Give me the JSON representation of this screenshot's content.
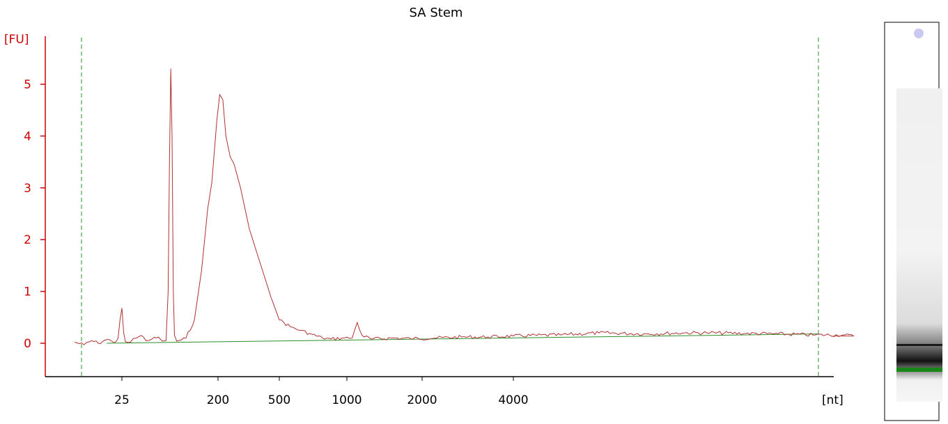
{
  "chart_data": {
    "type": "line",
    "title": "SA Stem",
    "ylabel": "[FU]",
    "xlabel": "[nt]",
    "x_scale": "log",
    "x_ticks": [
      "25",
      "200",
      "500",
      "1000",
      "2000",
      "4000"
    ],
    "y_ticks": [
      "0",
      "1",
      "2",
      "3",
      "4",
      "5"
    ],
    "ylim": [
      -0.65,
      5.9
    ],
    "grid": false,
    "colors": {
      "trace": "#b03030",
      "baseline": "#2a8f2a",
      "y_axis": "#cc0000",
      "marker_line": "#2a8f2a",
      "lane_band": "#1a1a1a",
      "lane_marker": "#178517"
    },
    "series": [
      {
        "points": [
          [
            9,
            0.02
          ],
          [
            11,
            -0.03
          ],
          [
            13,
            0.05
          ],
          [
            15,
            0.0
          ],
          [
            18,
            0.07
          ],
          [
            20,
            0.04
          ],
          [
            22,
            0.03
          ],
          [
            23,
            0.1
          ],
          [
            24,
            0.45
          ],
          [
            25,
            0.68
          ],
          [
            26,
            0.2
          ],
          [
            27,
            0.03
          ],
          [
            30,
            0.02
          ],
          [
            34,
            0.1
          ],
          [
            38,
            0.15
          ],
          [
            42,
            0.05
          ],
          [
            48,
            0.08
          ],
          [
            55,
            0.12
          ],
          [
            60,
            0.04
          ],
          [
            65,
            0.05
          ],
          [
            68,
            1.0
          ],
          [
            70,
            3.5
          ],
          [
            72,
            5.3
          ],
          [
            74,
            4.0
          ],
          [
            76,
            1.0
          ],
          [
            78,
            0.15
          ],
          [
            82,
            0.04
          ],
          [
            90,
            0.06
          ],
          [
            100,
            0.1
          ],
          [
            120,
            0.45
          ],
          [
            140,
            1.4
          ],
          [
            160,
            2.6
          ],
          [
            175,
            3.1
          ],
          [
            195,
            4.3
          ],
          [
            205,
            4.8
          ],
          [
            215,
            4.7
          ],
          [
            225,
            4.0
          ],
          [
            240,
            3.6
          ],
          [
            255,
            3.45
          ],
          [
            280,
            3.0
          ],
          [
            320,
            2.2
          ],
          [
            380,
            1.5
          ],
          [
            440,
            0.9
          ],
          [
            500,
            0.45
          ],
          [
            560,
            0.32
          ],
          [
            620,
            0.25
          ],
          [
            700,
            0.17
          ],
          [
            780,
            0.1
          ],
          [
            850,
            0.08
          ],
          [
            950,
            0.1
          ],
          [
            1050,
            0.1
          ],
          [
            1100,
            0.4
          ],
          [
            1150,
            0.15
          ],
          [
            1250,
            0.08
          ],
          [
            1500,
            0.1
          ],
          [
            1800,
            0.09
          ],
          [
            2200,
            0.1
          ],
          [
            2700,
            0.12
          ],
          [
            3300,
            0.12
          ],
          [
            4000,
            0.14
          ],
          [
            5000,
            0.16
          ],
          [
            6000,
            0.2
          ],
          [
            7500,
            0.18
          ],
          [
            9000,
            0.2
          ],
          [
            10000,
            0.2
          ],
          [
            12000,
            0.19
          ],
          [
            14000,
            0.18
          ],
          [
            16500,
            0.16
          ],
          [
            19000,
            0.16
          ],
          [
            20000,
            0.14
          ]
        ]
      },
      {
        "points": [
          [
            18,
            0.0
          ],
          [
            17000,
            0.18
          ]
        ]
      }
    ]
  }
}
